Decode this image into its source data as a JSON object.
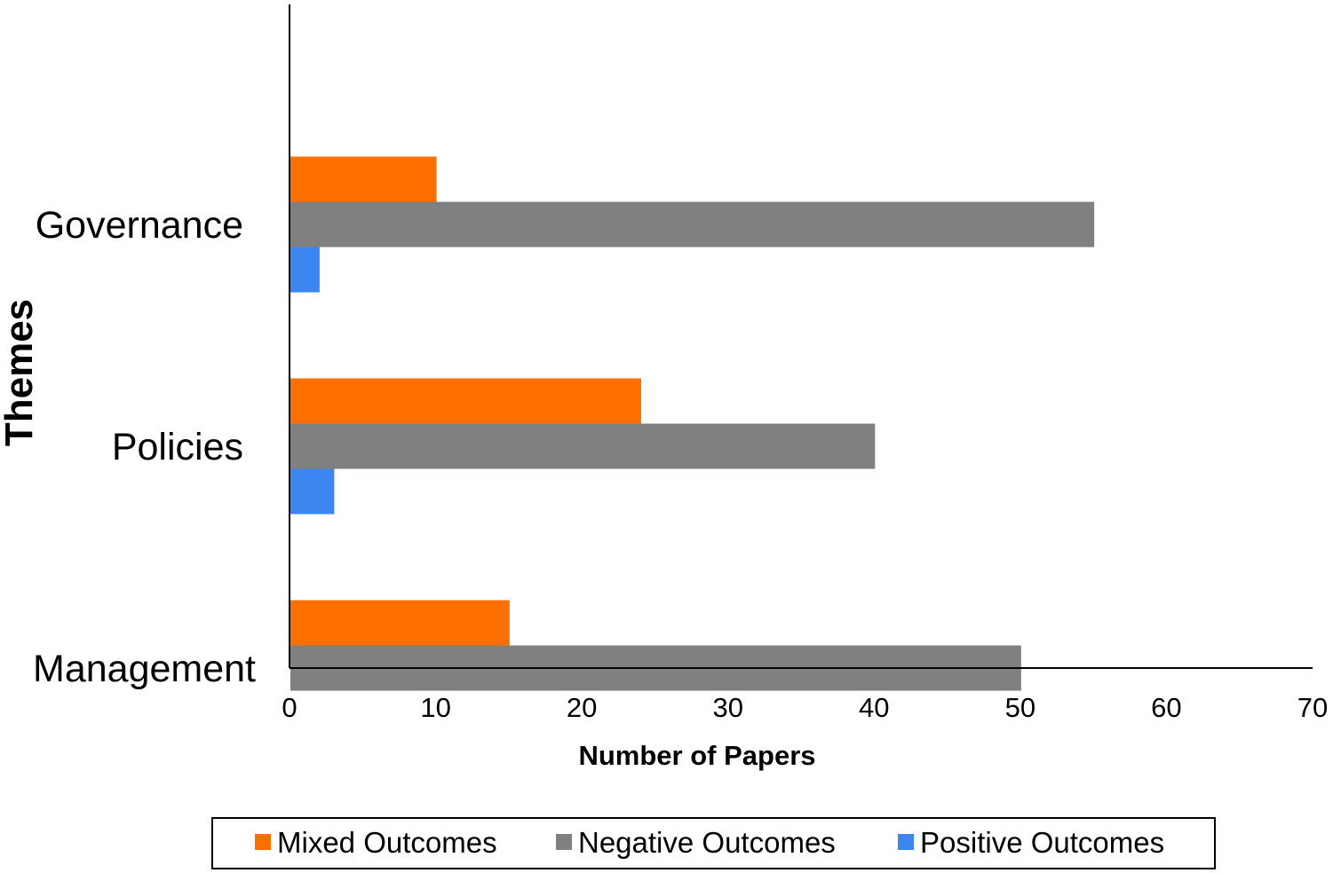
{
  "chart_data": {
    "type": "bar",
    "orientation": "horizontal",
    "categories": [
      "Governance",
      "Policies",
      "Management"
    ],
    "series": [
      {
        "name": "Mixed Outcomes",
        "color": "#ff6f00",
        "values": [
          10,
          24,
          15
        ]
      },
      {
        "name": "Negative Outcomes",
        "color": "#808080",
        "values": [
          55,
          40,
          50
        ]
      },
      {
        "name": "Positive Outcomes",
        "color": "#3d85f0",
        "values": [
          2,
          3,
          0
        ]
      }
    ],
    "xlabel": "Number of Papers",
    "ylabel": "Themes",
    "xlim": [
      0,
      70
    ],
    "xticks": [
      "0",
      "10",
      "20",
      "30",
      "40",
      "50",
      "60",
      "70"
    ],
    "grid": false,
    "legend_position": "bottom"
  }
}
